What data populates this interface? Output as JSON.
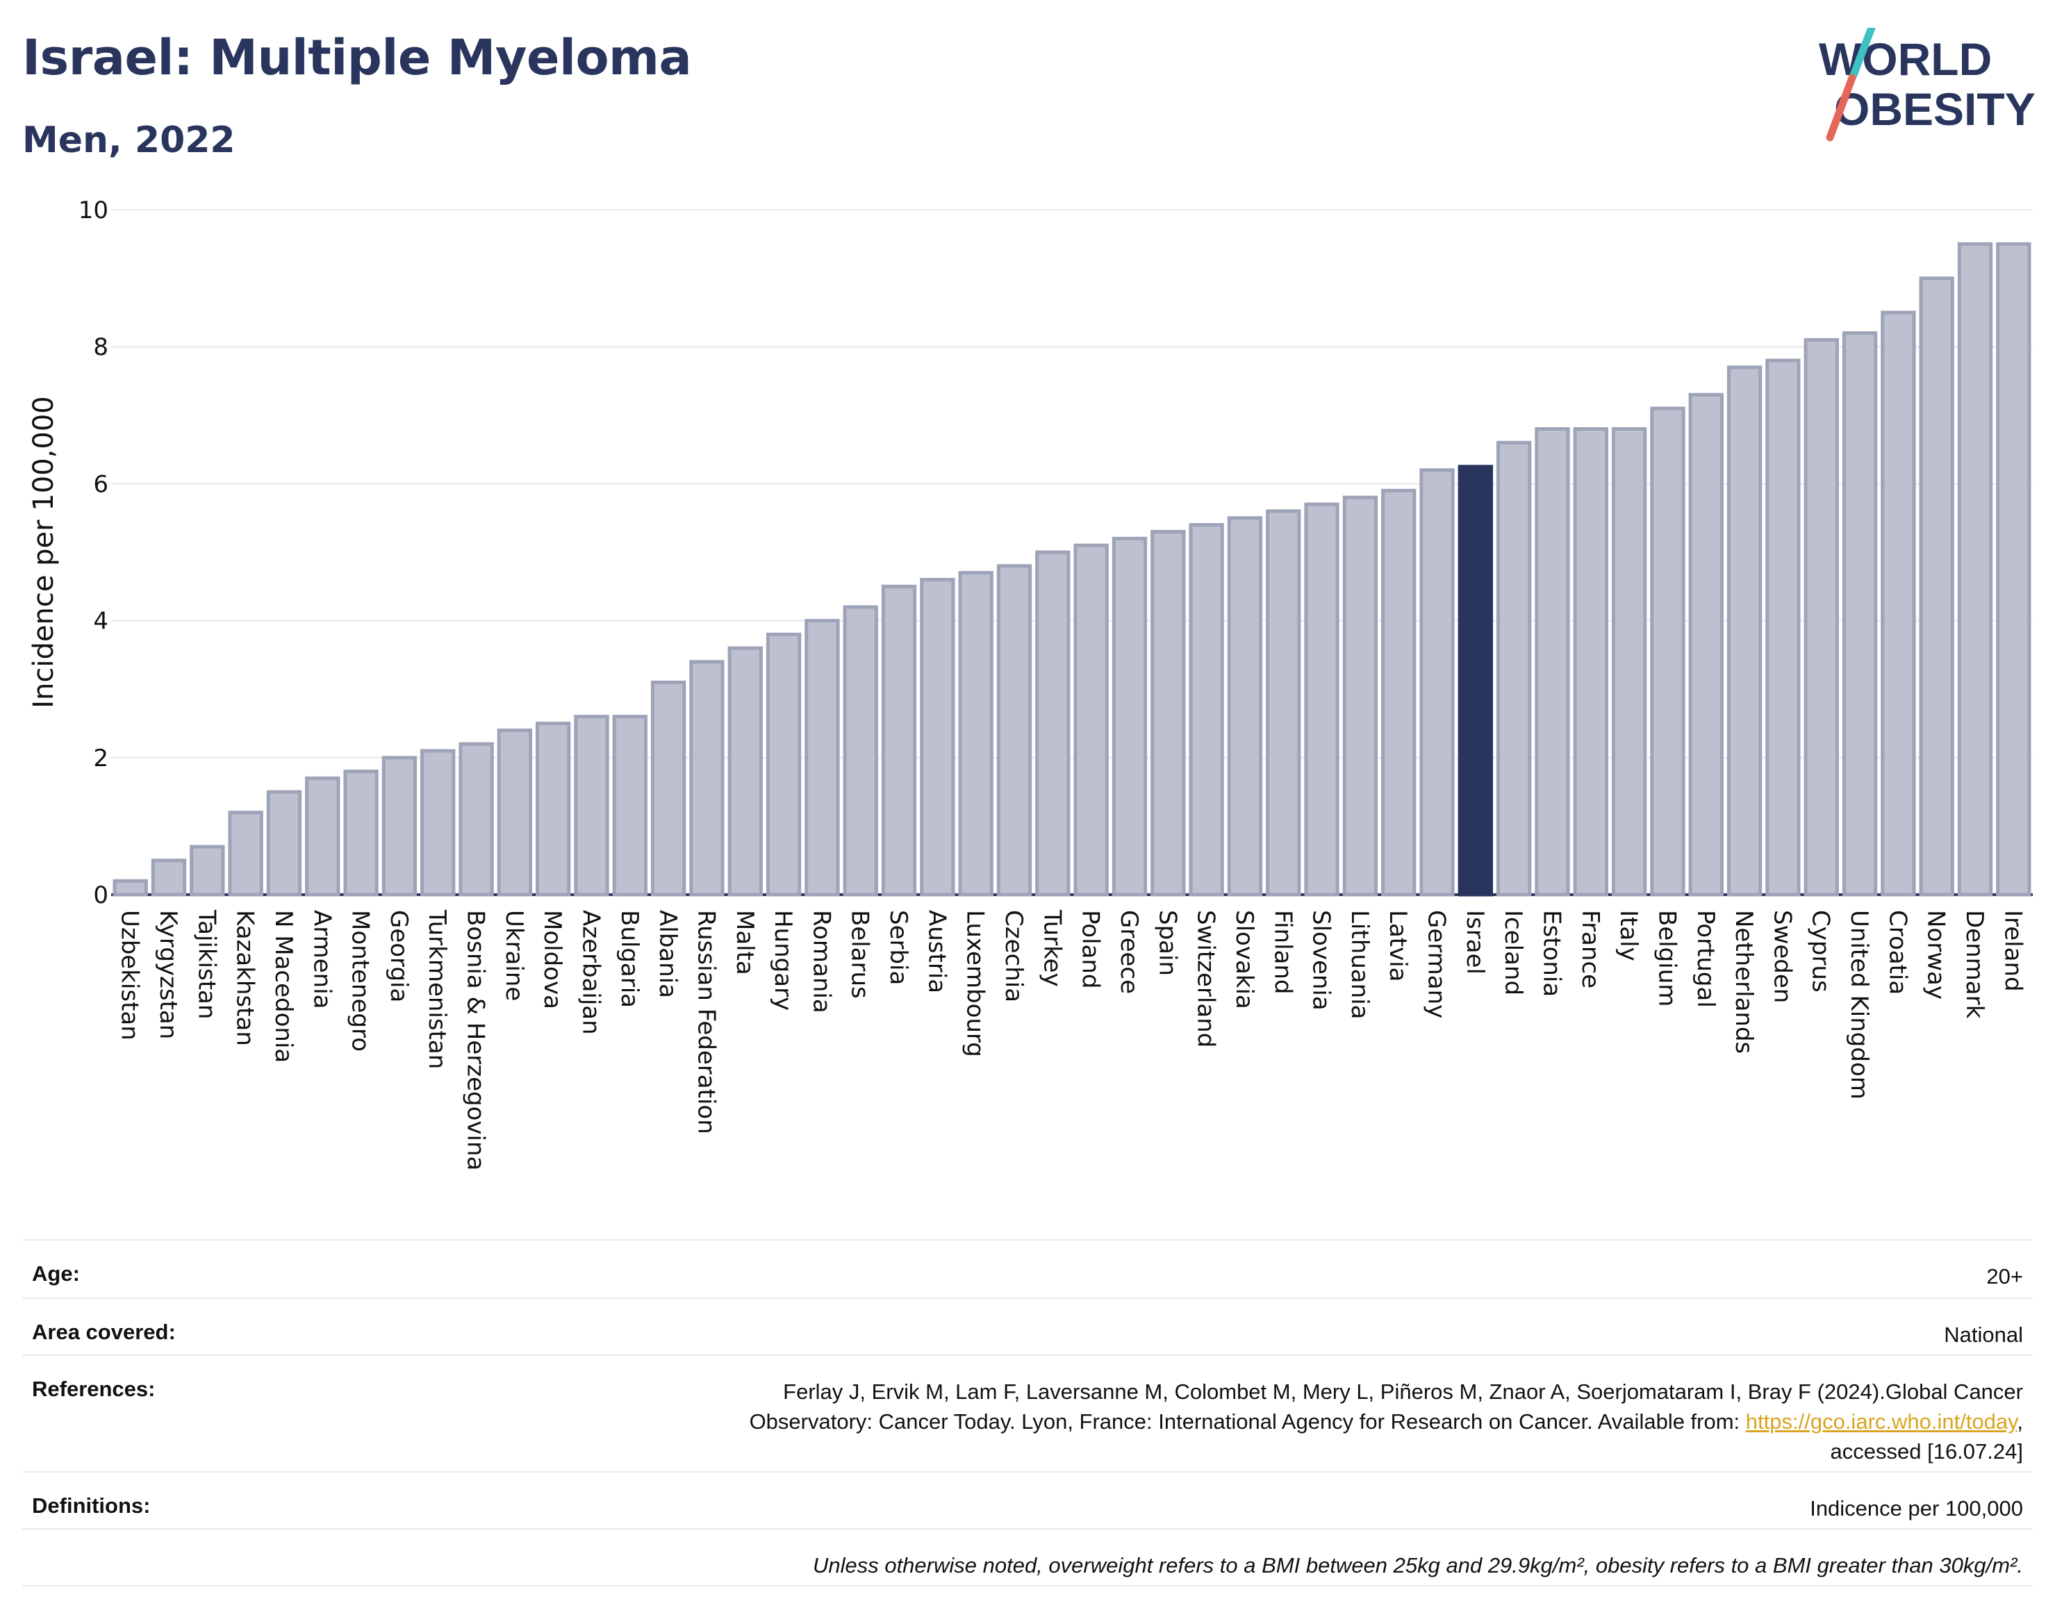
{
  "header": {
    "title": "Israel: Multiple Myeloma",
    "subtitle": "Men, 2022"
  },
  "logo": {
    "line1": "WORLD",
    "line2": "OBESITY",
    "text_color": "#2a355e",
    "slash_color_top": "#3ec1c1",
    "slash_color_bottom": "#e5675a"
  },
  "colors": {
    "bar": "#bcc0cf",
    "bar_border": "#9ea3b8",
    "highlight": "#2a355e",
    "grid": "#e6e8ee",
    "axis": "#2a355e"
  },
  "chart_data": {
    "type": "bar",
    "title": "Israel: Multiple Myeloma",
    "subtitle": "Men, 2022",
    "ylabel": "Incidence per 100,000",
    "xlabel": "",
    "ylim": [
      0,
      10
    ],
    "yticks": [
      0,
      2,
      4,
      6,
      8,
      10
    ],
    "grid": true,
    "highlight_category": "Israel",
    "categories": [
      "Uzbekistan",
      "Kyrgyzstan",
      "Tajikistan",
      "Kazakhstan",
      "N Macedonia",
      "Armenia",
      "Montenegro",
      "Georgia",
      "Turkmenistan",
      "Bosnia & Herzegovina",
      "Ukraine",
      "Moldova",
      "Azerbaijan",
      "Bulgaria",
      "Albania",
      "Russian Federation",
      "Malta",
      "Hungary",
      "Romania",
      "Belarus",
      "Serbia",
      "Austria",
      "Luxembourg",
      "Czechia",
      "Turkey",
      "Poland",
      "Greece",
      "Spain",
      "Switzerland",
      "Slovakia",
      "Finland",
      "Slovenia",
      "Lithuania",
      "Latvia",
      "Germany",
      "Israel",
      "Iceland",
      "Estonia",
      "France",
      "Italy",
      "Belgium",
      "Portugal",
      "Netherlands",
      "Sweden",
      "Cyprus",
      "United Kingdom",
      "Croatia",
      "Norway",
      "Denmark",
      "Ireland"
    ],
    "values": [
      0.2,
      0.5,
      0.7,
      1.2,
      1.5,
      1.7,
      1.8,
      2.0,
      2.1,
      2.2,
      2.4,
      2.5,
      2.6,
      2.6,
      3.1,
      3.4,
      3.6,
      3.8,
      4.0,
      4.2,
      4.5,
      4.6,
      4.7,
      4.8,
      5.0,
      5.1,
      5.2,
      5.3,
      5.4,
      5.5,
      5.6,
      5.7,
      5.8,
      5.9,
      6.2,
      6.25,
      6.6,
      6.8,
      6.8,
      6.8,
      7.1,
      7.3,
      7.7,
      7.8,
      8.1,
      8.2,
      8.5,
      9.0,
      9.5,
      9.5
    ]
  },
  "meta": {
    "age_label": "Age:",
    "age_value": "20+",
    "area_label": "Area covered:",
    "area_value": "National",
    "references_label": "References:",
    "references_line1": "Ferlay J, Ervik M, Lam F, Laversanne M, Colombet M, Mery L, Piñeros M, Znaor A, Soerjomataram I, Bray F (2024).Global Cancer",
    "references_line2_prefix": "Observatory: Cancer Today. Lyon, France: International Agency for Research on Cancer. Available from: ",
    "references_link": "https://gco.iarc.who.int/today",
    "references_line2_suffix": ",",
    "references_line3": "accessed [16.07.24]",
    "definitions_label": "Definitions:",
    "definitions_value": "Indicence per 100,000",
    "note": "Unless otherwise noted, overweight refers to a BMI between 25kg and 29.9kg/m², obesity refers to a BMI greater than 30kg/m²."
  }
}
